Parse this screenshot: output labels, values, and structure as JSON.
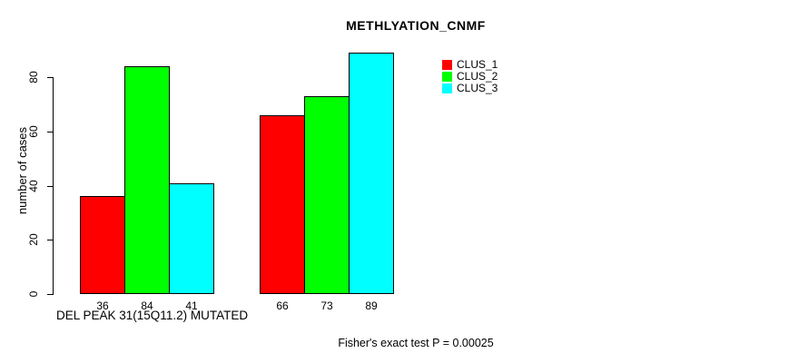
{
  "chart_data": {
    "type": "bar",
    "title": "METHLYATION_CNMF",
    "ylabel": "number of cases",
    "xlabel": "DEL PEAK 31(15Q11.2) MUTATED",
    "annotation": "Fisher's exact test P = 0.00025",
    "yticks": [
      0,
      20,
      40,
      60,
      80
    ],
    "ylim": [
      0,
      89
    ],
    "grid": false,
    "legend_position": "top-right",
    "categories": [
      "",
      ""
    ],
    "series": [
      {
        "name": "CLUS_1",
        "color": "#ff0000",
        "values": [
          36,
          66
        ]
      },
      {
        "name": "CLUS_2",
        "color": "#00ff00",
        "values": [
          84,
          73
        ]
      },
      {
        "name": "CLUS_3",
        "color": "#00ffff",
        "values": [
          41,
          89
        ]
      }
    ],
    "bar_value_labels": [
      [
        36,
        84,
        41
      ],
      [
        66,
        73,
        89
      ]
    ],
    "colors": {
      "bar_border": "#000000",
      "text": "#000000",
      "background": "#ffffff"
    }
  }
}
